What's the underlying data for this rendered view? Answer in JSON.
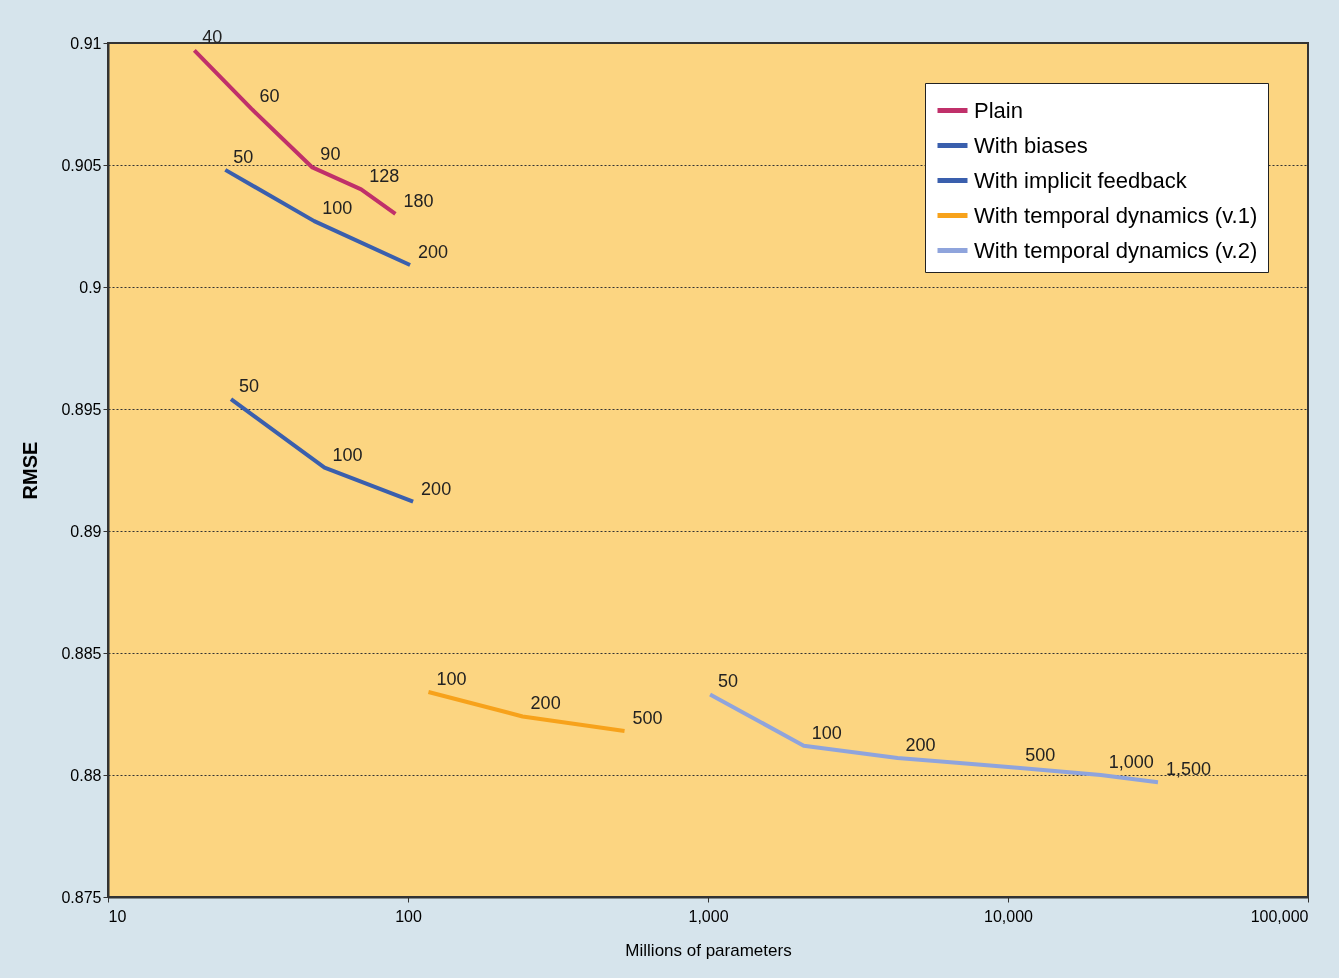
{
  "chart_data": {
    "type": "line",
    "xlabel": "Millions of parameters",
    "ylabel": "RMSE",
    "log": "x",
    "grid": "y",
    "legend": "top right",
    "marker": "none",
    "line_style": "solid",
    "xlim": [
      10,
      100000
    ],
    "xticks": [
      10,
      100,
      {
        "value": 1000,
        "label": "1,000"
      },
      {
        "value": 10000,
        "label": "10,000"
      },
      {
        "value": 100000,
        "label": "100,000"
      }
    ],
    "ylim": [
      0.875,
      0.91
    ],
    "yticks": [
      0.875,
      0.88,
      0.885,
      0.89,
      0.895,
      0.9,
      0.905,
      0.91
    ],
    "series": [
      {
        "name": "Plain",
        "color": "#c0306a",
        "x": [
          19.4,
          30.1,
          48,
          69.8,
          90.8
        ],
        "values": [
          0.9097,
          0.9073,
          0.9049,
          0.904,
          0.903
        ]
      },
      {
        "name": "With biases",
        "color": "#3a5fad",
        "x": [
          24.6,
          48.7,
          101.6
        ],
        "values": [
          0.9048,
          0.9027,
          0.9009
        ]
      },
      {
        "name": "With implicit feedback",
        "color": "#3a5fad",
        "x": [
          25.7,
          52.7,
          104
        ],
        "values": [
          0.8954,
          0.8926,
          0.8912
        ]
      },
      {
        "name": "With temporal dynamics (v.1)",
        "color": "#f7a21b",
        "x": [
          117,
          241,
          527
        ],
        "values": [
          0.8834,
          0.8824,
          0.8818
        ]
      },
      {
        "name": "With temporal dynamics (v.2)",
        "color": "#8fa4dc",
        "x": [
          1016,
          2085,
          4285,
          10740,
          20370,
          31620
        ],
        "values": [
          0.8833,
          0.8812,
          0.8807,
          0.8803,
          0.88,
          0.8797
        ]
      }
    ],
    "annotations": [
      {
        "text": "40",
        "x": 19.4,
        "y": 0.9097
      },
      {
        "text": "60",
        "x": 30.1,
        "y": 0.9073
      },
      {
        "text": "90",
        "x": 48,
        "y": 0.9049
      },
      {
        "text": "128",
        "x": 69.8,
        "y": 0.904
      },
      {
        "text": "180",
        "x": 90.8,
        "y": 0.903
      },
      {
        "text": "50",
        "x": 24.6,
        "y": 0.9048
      },
      {
        "text": "100",
        "x": 48.7,
        "y": 0.9027
      },
      {
        "text": "200",
        "x": 101.6,
        "y": 0.9009
      },
      {
        "text": "50",
        "x": 25.7,
        "y": 0.8954
      },
      {
        "text": "100",
        "x": 52.7,
        "y": 0.8926
      },
      {
        "text": "200",
        "x": 104,
        "y": 0.8912
      },
      {
        "text": "100",
        "x": 117,
        "y": 0.8834
      },
      {
        "text": "200",
        "x": 241,
        "y": 0.8824
      },
      {
        "text": "500",
        "x": 527,
        "y": 0.8818
      },
      {
        "text": "50",
        "x": 1016,
        "y": 0.8833
      },
      {
        "text": "100",
        "x": 2085,
        "y": 0.8812
      },
      {
        "text": "200",
        "x": 4285,
        "y": 0.8807
      },
      {
        "text": "500",
        "x": 10740,
        "y": 0.8803
      },
      {
        "text": "1,000",
        "x": 20370,
        "y": 0.88
      },
      {
        "text": "1,500",
        "x": 31620,
        "y": 0.8797
      }
    ]
  }
}
